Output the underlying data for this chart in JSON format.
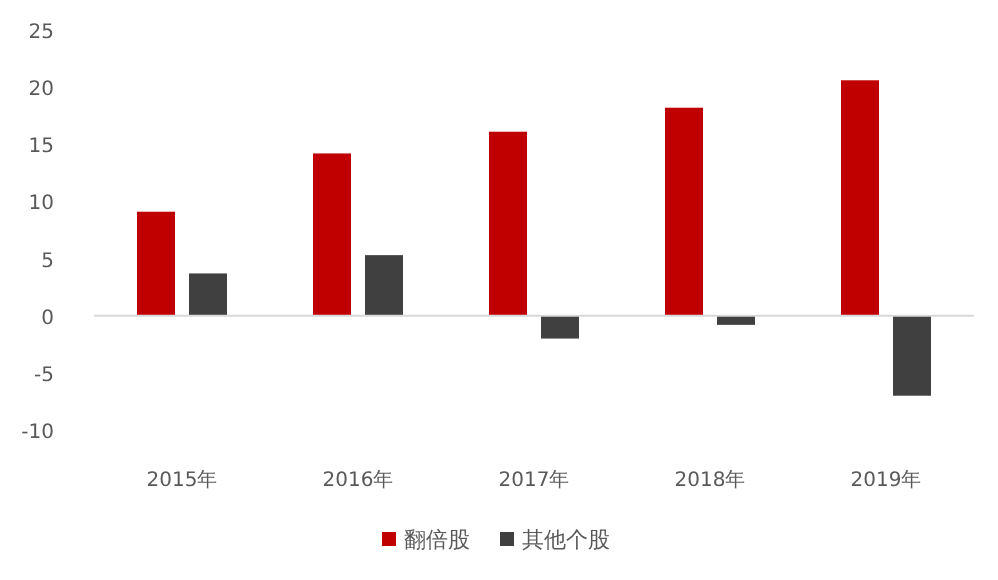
{
  "chart_data": {
    "type": "bar",
    "categories": [
      "2015年",
      "2016年",
      "2017年",
      "2018年",
      "2019年"
    ],
    "series": [
      {
        "name": "翻倍股",
        "color": "#c00000",
        "values": [
          9.1,
          14.2,
          16.1,
          18.2,
          20.6
        ]
      },
      {
        "name": "其他个股",
        "color": "#404040",
        "values": [
          3.7,
          5.3,
          -2.0,
          -0.8,
          -7.0
        ]
      }
    ],
    "ylim": [
      -10,
      25
    ],
    "yticks": [
      -10,
      -5,
      0,
      5,
      10,
      15,
      20,
      25
    ],
    "legend": "bottom"
  }
}
